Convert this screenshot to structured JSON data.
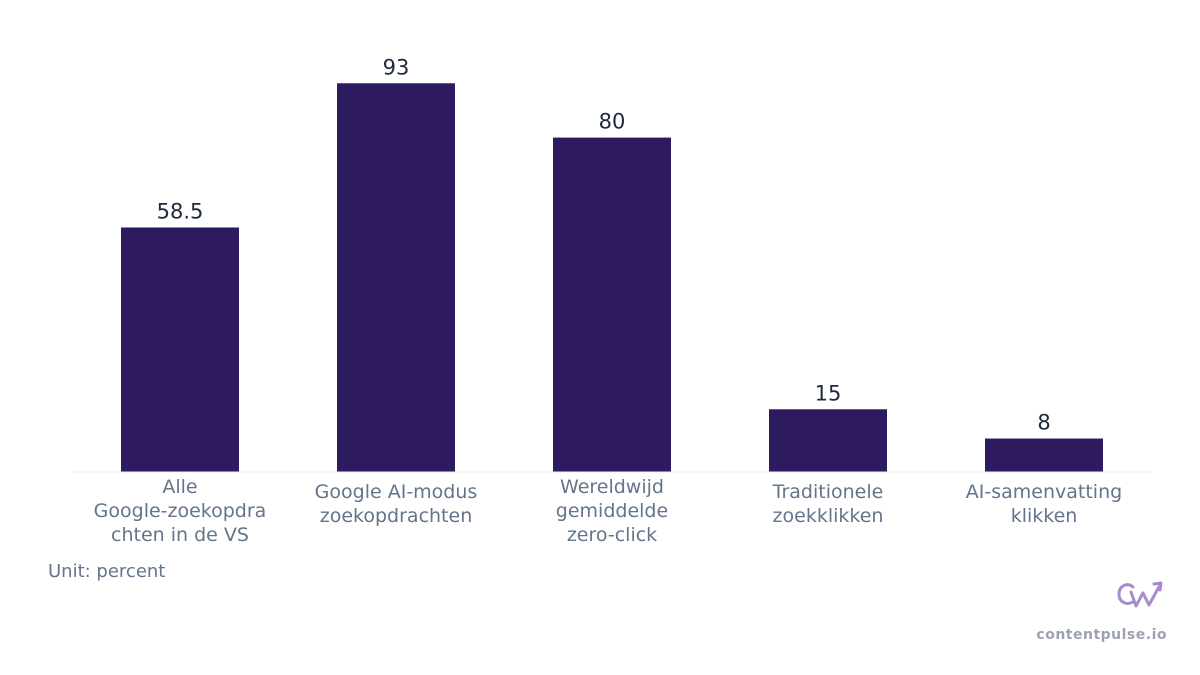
{
  "chart_data": {
    "type": "bar",
    "categories": [
      [
        "Alle",
        "Google-zoekopdra",
        "chten in de VS"
      ],
      [
        "Google AI-modus",
        "zoekopdrachten"
      ],
      [
        "Wereldwijd",
        "gemiddelde",
        "zero-click"
      ],
      [
        "Traditionele",
        "zoekklikken"
      ],
      [
        "AI-samenvatting",
        "klikken"
      ]
    ],
    "values": [
      58.5,
      93,
      80,
      15,
      8
    ],
    "value_labels": [
      "58.5",
      "93",
      "80",
      "15",
      "8"
    ],
    "ylim": [
      0,
      100
    ],
    "grid": false,
    "bar_color": "#2e1a5e"
  },
  "unit_label": "Unit: percent",
  "brand": {
    "text": "contentpulse.io",
    "logo_icon": "cp-logo-icon",
    "logo_color": "#a78bca"
  },
  "colors": {
    "bar": "#2e1a5e",
    "axis_text": "#64748b",
    "value_text": "#1e293b",
    "baseline": "#e5e7eb",
    "brand_text": "#9ca3af"
  }
}
